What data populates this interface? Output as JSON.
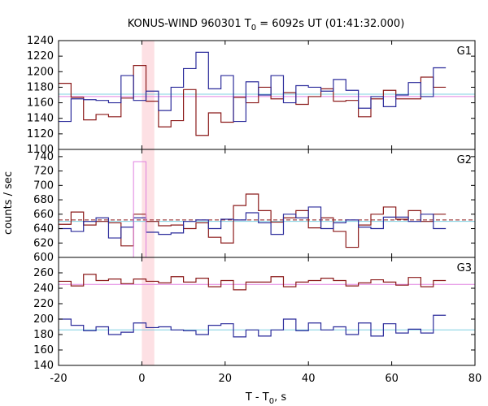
{
  "chart_data": {
    "type": "line",
    "title": "KONUS-WIND 960301 T",
    "title_sub": "0",
    "title_rest": " = 6092s UT (01:41:32.000)",
    "xlabel": "T - T",
    "xlabel_sub": "0",
    "xlabel_rest": ", s",
    "ylabel": "counts / sec",
    "xlim": [
      -20,
      80
    ],
    "xticks": [
      -20,
      0,
      20,
      40,
      60,
      80
    ],
    "highlight_interval": [
      0,
      3
    ],
    "bin_width": 3,
    "x_start": -20,
    "colors": {
      "red": "#8b1a1a",
      "blue": "#2b2b9b",
      "pink": "#e080e0",
      "cyan": "#7fd0e0",
      "highlight": "#fde0e4"
    },
    "panels": [
      {
        "label": "G1",
        "ylim": [
          1100,
          1240
        ],
        "yticks": [
          1100,
          1120,
          1140,
          1160,
          1180,
          1200,
          1220,
          1240
        ],
        "bg_red": 1168,
        "bg_blue": 1171,
        "series": [
          {
            "color": "red",
            "values": [
              1185,
              1167,
              1138,
              1145,
              1142,
              1166,
              1208,
              1162,
              1129,
              1137,
              1177,
              1118,
              1147,
              1135,
              1167,
              1160,
              1180,
              1165,
              1173,
              1158,
              1168,
              1178,
              1162,
              1163,
              1142,
              1165,
              1176,
              1165,
              1165,
              1193,
              1180
            ]
          },
          {
            "color": "blue",
            "values": [
              1136,
              1165,
              1164,
              1163,
              1160,
              1195,
              1163,
              1175,
              1150,
              1180,
              1204,
              1225,
              1178,
              1195,
              1136,
              1187,
              1170,
              1195,
              1160,
              1182,
              1180,
              1175,
              1190,
              1176,
              1153,
              1168,
              1155,
              1170,
              1186,
              1168,
              1205
            ]
          }
        ]
      },
      {
        "label": "G2",
        "ylim": [
          600,
          750
        ],
        "yticks": [
          600,
          620,
          640,
          660,
          680,
          700,
          720,
          740
        ],
        "bg_red": 652,
        "bg_blue": 650,
        "series": [
          {
            "color": "red",
            "values": [
              646,
              663,
              645,
              650,
              648,
              616,
              660,
              650,
              644,
              645,
              640,
              648,
              628,
              620,
              672,
              688,
              665,
              649,
              655,
              665,
              641,
              655,
              636,
              614,
              645,
              660,
              670,
              653,
              665,
              650,
              660
            ]
          },
          {
            "color": "blue",
            "values": [
              640,
              636,
              650,
              655,
              627,
              642,
              655,
              635,
              632,
              634,
              650,
              652,
              640,
              653,
              652,
              662,
              648,
              632,
              660,
              655,
              670,
              640,
              648,
              652,
              642,
              640,
              656,
              656,
              650,
              660,
              640
            ]
          },
          {
            "color": "pink",
            "values": [
              null,
              null,
              null,
              null,
              null,
              null,
              733,
              null,
              null,
              null,
              null,
              null,
              null,
              null,
              null,
              null,
              null,
              null,
              null,
              null,
              null,
              null,
              null,
              null,
              null,
              null,
              null,
              null,
              null,
              null,
              null
            ]
          }
        ]
      },
      {
        "label": "G3",
        "ylim": [
          140,
          280
        ],
        "yticks": [
          140,
          160,
          180,
          200,
          220,
          240,
          260
        ],
        "bg_red": 245,
        "bg_blue": 186,
        "series": [
          {
            "color": "red",
            "values": [
              249,
              243,
              258,
              250,
              252,
              246,
              252,
              249,
              247,
              255,
              248,
              253,
              242,
              250,
              238,
              248,
              248,
              255,
              242,
              248,
              250,
              253,
              250,
              243,
              247,
              251,
              248,
              244,
              254,
              242,
              250
            ]
          },
          {
            "color": "blue",
            "values": [
              200,
              192,
              185,
              190,
              180,
              183,
              195,
              189,
              190,
              186,
              185,
              180,
              192,
              194,
              177,
              186,
              178,
              186,
              200,
              185,
              195,
              186,
              190,
              180,
              195,
              178,
              194,
              182,
              187,
              182,
              205
            ]
          }
        ]
      }
    ]
  }
}
